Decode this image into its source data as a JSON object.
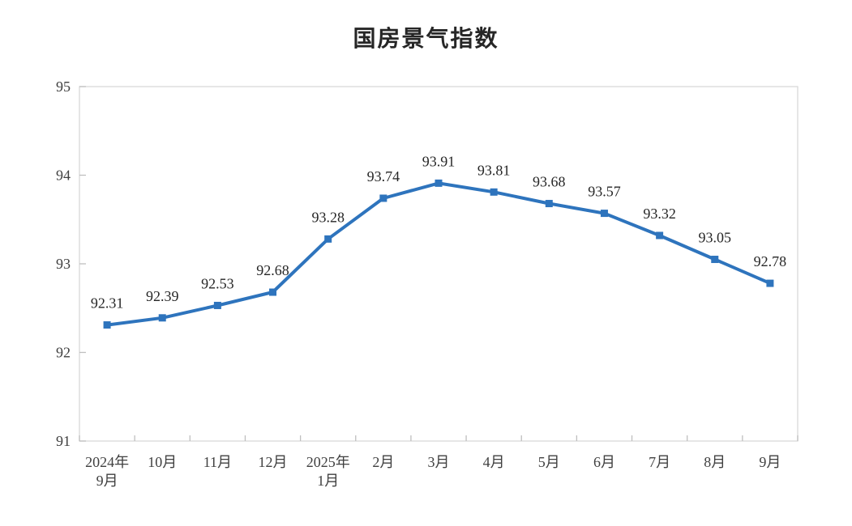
{
  "page": {
    "background": "#ffffff"
  },
  "chart_data": {
    "type": "line",
    "title": "国房景气指数",
    "categories": [
      "2024年\n9月",
      "10月",
      "11月",
      "12月",
      "2025年\n1月",
      "2月",
      "3月",
      "4月",
      "5月",
      "6月",
      "7月",
      "8月",
      "9月"
    ],
    "values": [
      92.31,
      92.39,
      92.53,
      92.68,
      93.28,
      93.74,
      93.91,
      93.81,
      93.68,
      93.57,
      93.32,
      93.05,
      92.78
    ],
    "data_labels": [
      "92.31",
      "92.39",
      "92.53",
      "92.68",
      "93.28",
      "93.74",
      "93.91",
      "93.81",
      "93.68",
      "93.57",
      "93.32",
      "93.05",
      "92.78"
    ],
    "xlabel": "",
    "ylabel": "",
    "ylim": [
      91,
      95
    ],
    "yticks": [
      91,
      92,
      93,
      94,
      95
    ],
    "grid": "off",
    "legend": "none",
    "marker": "square",
    "colors": {
      "line": "#2E74BD",
      "marker": "#2E74BD",
      "plot_border": "#D9D9D9",
      "tick": "#BFBFBF",
      "axis_text": "#404040",
      "data_label_text": "#262626"
    }
  }
}
